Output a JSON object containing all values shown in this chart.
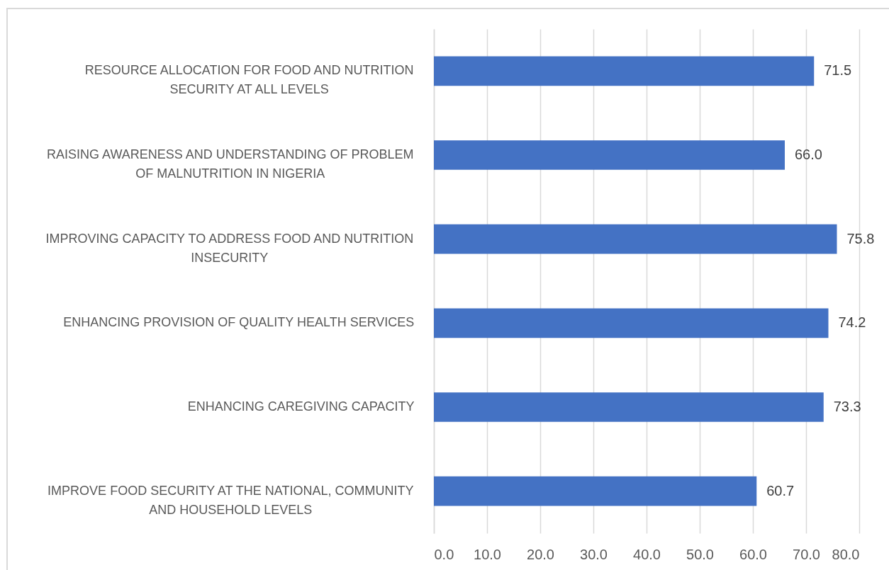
{
  "chart_data": {
    "type": "bar",
    "orientation": "horizontal",
    "categories": [
      "RESOURCE ALLOCATION FOR FOOD AND NUTRITION SECURITY AT ALL LEVELS",
      "RAISING AWARENESS AND UNDERSTANDING OF PROBLEM OF MALNUTRITION IN NIGERIA",
      "IMPROVING CAPACITY TO ADDRESS FOOD AND NUTRITION INSECURITY",
      "ENHANCING PROVISION OF QUALITY HEALTH SERVICES",
      "ENHANCING CAREGIVING CAPACITY",
      "IMPROVE FOOD SECURITY AT THE NATIONAL, COMMUNITY AND HOUSEHOLD LEVELS"
    ],
    "values": [
      71.5,
      66.0,
      75.8,
      74.2,
      73.3,
      60.7
    ],
    "value_labels": [
      "71.5",
      "66.0",
      "75.8",
      "74.2",
      "73.3",
      "60.7"
    ],
    "color": "#4472c4",
    "xlim": [
      0,
      80
    ],
    "xticks": [
      {
        "value": 0,
        "label": "0.0"
      },
      {
        "value": 10,
        "label": "10.0"
      },
      {
        "value": 20,
        "label": "20.0"
      },
      {
        "value": 30,
        "label": "30.0"
      },
      {
        "value": 40,
        "label": "40.0"
      },
      {
        "value": 50,
        "label": "50.0"
      },
      {
        "value": 60,
        "label": "60.0"
      },
      {
        "value": 70,
        "label": "70.0"
      },
      {
        "value": 80,
        "label": "80.0"
      }
    ],
    "grid": "x"
  }
}
